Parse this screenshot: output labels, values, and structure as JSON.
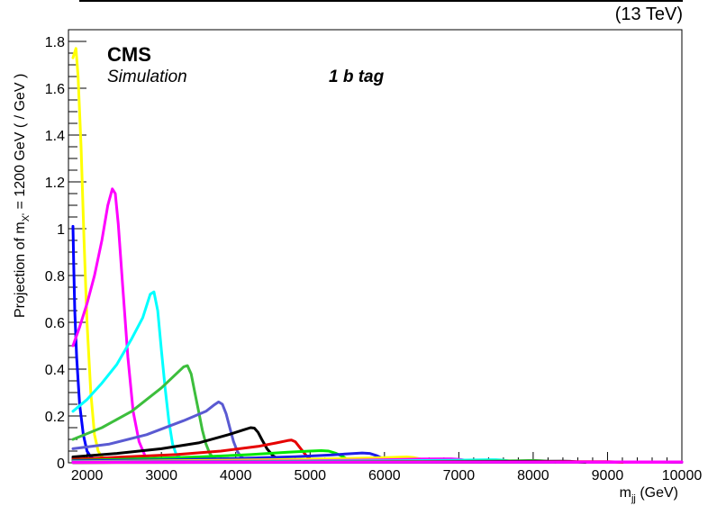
{
  "header": {
    "energy": "(13 TeV)"
  },
  "labels": {
    "cms": "CMS",
    "simulation": "Simulation",
    "tag": "1 b tag"
  },
  "chart_data": {
    "type": "line",
    "title": "",
    "ylabel": {
      "pre": "Projection of m",
      "sub": "X'",
      "post": " = 1200 GeV ( / GeV )"
    },
    "xlabel": {
      "pre": "m",
      "sub": "jj",
      "post": " (GeV)"
    },
    "xlim": [
      1750,
      10000
    ],
    "ylim": [
      0,
      1.85
    ],
    "grid": false,
    "xticks": [
      2000,
      3000,
      4000,
      5000,
      6000,
      7000,
      8000,
      9000,
      10000
    ],
    "xtick_labels": [
      "2000",
      "3000",
      "4000",
      "5000",
      "6000",
      "7000",
      "8000",
      "9000",
      "10000"
    ],
    "yticks": [
      0,
      0.2,
      0.4,
      0.6,
      0.8,
      1,
      1.2,
      1.4,
      1.6,
      1.8
    ],
    "ytick_labels": [
      "0",
      "0.2",
      "0.4",
      "0.6",
      "0.8",
      "1",
      "1.2",
      "1.4",
      "1.6",
      "1.8"
    ],
    "series": [
      {
        "color": "#0000ff",
        "x": [
          1810,
          1820,
          1835,
          1860,
          1900,
          1950,
          2000,
          2050,
          2100,
          2150,
          2300,
          2500,
          3000,
          3500,
          4000
        ],
        "y": [
          1.01,
          0.85,
          0.65,
          0.45,
          0.25,
          0.12,
          0.05,
          0.025,
          0.015,
          0.01,
          0.008,
          0.006,
          0.004,
          0.003,
          0.003
        ]
      },
      {
        "color": "#ffff00",
        "x": [
          1810,
          1850,
          1880,
          1920,
          1960,
          2000,
          2050,
          2100,
          2150,
          2200,
          2250,
          2300,
          2500,
          3000,
          4000
        ],
        "y": [
          1.73,
          1.77,
          1.65,
          1.35,
          0.95,
          0.6,
          0.3,
          0.12,
          0.05,
          0.025,
          0.015,
          0.01,
          0.008,
          0.006,
          0.005
        ]
      },
      {
        "color": "#ff00ff",
        "x": [
          1810,
          1900,
          2000,
          2100,
          2200,
          2280,
          2340,
          2380,
          2420,
          2480,
          2550,
          2620,
          2700,
          2780,
          2850,
          3000,
          3500,
          8000,
          10000
        ],
        "y": [
          0.5,
          0.58,
          0.68,
          0.8,
          0.95,
          1.1,
          1.17,
          1.15,
          1.02,
          0.75,
          0.45,
          0.22,
          0.09,
          0.03,
          0.015,
          0.01,
          0.006,
          0.002,
          0.002
        ]
      },
      {
        "color": "#00ffff",
        "x": [
          1810,
          2000,
          2200,
          2400,
          2600,
          2750,
          2850,
          2900,
          2950,
          3000,
          3050,
          3100,
          3150,
          3200,
          3300,
          3500,
          5000
        ],
        "y": [
          0.22,
          0.27,
          0.34,
          0.42,
          0.53,
          0.62,
          0.72,
          0.73,
          0.65,
          0.48,
          0.32,
          0.18,
          0.08,
          0.035,
          0.012,
          0.006,
          0.003
        ]
      },
      {
        "color": "#3cbe3c",
        "x": [
          1810,
          2200,
          2600,
          3000,
          3200,
          3300,
          3350,
          3400,
          3450,
          3500,
          3550,
          3600,
          3650,
          3700,
          3800,
          4000,
          6000
        ],
        "y": [
          0.1,
          0.15,
          0.22,
          0.32,
          0.38,
          0.41,
          0.415,
          0.38,
          0.3,
          0.22,
          0.14,
          0.08,
          0.04,
          0.02,
          0.008,
          0.005,
          0.002
        ]
      },
      {
        "color": "#5a5ad2",
        "x": [
          1810,
          2300,
          2800,
          3300,
          3600,
          3700,
          3770,
          3820,
          3870,
          3920,
          3970,
          4020,
          4070,
          4150,
          4300,
          5000
        ],
        "y": [
          0.06,
          0.08,
          0.12,
          0.18,
          0.22,
          0.245,
          0.26,
          0.25,
          0.21,
          0.15,
          0.09,
          0.05,
          0.025,
          0.012,
          0.005,
          0.002
        ]
      },
      {
        "color": "#000000",
        "x": [
          1810,
          2400,
          3000,
          3500,
          3900,
          4100,
          4200,
          4250,
          4300,
          4350,
          4420,
          4500,
          4600,
          4700,
          5000
        ],
        "y": [
          0.025,
          0.04,
          0.06,
          0.085,
          0.12,
          0.14,
          0.15,
          0.148,
          0.13,
          0.1,
          0.06,
          0.03,
          0.012,
          0.006,
          0.003
        ]
      },
      {
        "color": "#e60000",
        "x": [
          1810,
          2500,
          3200,
          3800,
          4300,
          4550,
          4700,
          4750,
          4800,
          4850,
          4900,
          4950,
          5000,
          5100,
          5300
        ],
        "y": [
          0.015,
          0.025,
          0.035,
          0.05,
          0.07,
          0.085,
          0.095,
          0.097,
          0.09,
          0.07,
          0.05,
          0.03,
          0.015,
          0.006,
          0.003
        ]
      },
      {
        "color": "#00e600",
        "x": [
          1810,
          2500,
          3500,
          4200,
          4700,
          5000,
          5150,
          5250,
          5350,
          5450,
          5500,
          5600,
          5700
        ],
        "y": [
          0.01,
          0.015,
          0.025,
          0.035,
          0.045,
          0.05,
          0.052,
          0.05,
          0.04,
          0.025,
          0.015,
          0.006,
          0.003
        ]
      },
      {
        "color": "#1e1ee6",
        "x": [
          1810,
          3000,
          4000,
          4800,
          5300,
          5600,
          5700,
          5800,
          5900,
          6000,
          6100,
          6300
        ],
        "y": [
          0.008,
          0.012,
          0.018,
          0.026,
          0.034,
          0.04,
          0.042,
          0.04,
          0.03,
          0.015,
          0.006,
          0.002
        ]
      },
      {
        "color": "#ffff00",
        "x": [
          1810,
          3000,
          4500,
          5500,
          6000,
          6200,
          6300,
          6400,
          6500,
          6600,
          6700
        ],
        "y": [
          0.005,
          0.008,
          0.013,
          0.018,
          0.022,
          0.024,
          0.025,
          0.022,
          0.015,
          0.007,
          0.003
        ]
      },
      {
        "color": "#ff00ff",
        "x": [
          1810,
          3500,
          5000,
          6000,
          6500,
          6800,
          6900,
          7000,
          7100,
          7200,
          7300
        ],
        "y": [
          0.004,
          0.006,
          0.009,
          0.013,
          0.016,
          0.017,
          0.017,
          0.015,
          0.01,
          0.005,
          0.002
        ]
      },
      {
        "color": "#00ffff",
        "x": [
          1810,
          4000,
          6000,
          7000,
          7400,
          7500,
          7600,
          7700,
          7800
        ],
        "y": [
          0.003,
          0.005,
          0.008,
          0.011,
          0.013,
          0.013,
          0.011,
          0.007,
          0.003
        ]
      },
      {
        "color": "#3cbe3c",
        "x": [
          1810,
          5000,
          7000,
          7800,
          8000,
          8100,
          8200,
          8300
        ],
        "y": [
          0.002,
          0.004,
          0.007,
          0.009,
          0.01,
          0.009,
          0.006,
          0.003
        ]
      },
      {
        "color": "#000000",
        "x": [
          1810,
          6000,
          8000,
          8400,
          8500,
          8600,
          8700
        ],
        "y": [
          0.0015,
          0.003,
          0.006,
          0.007,
          0.006,
          0.004,
          0.002
        ]
      },
      {
        "color": "#e60000",
        "x": [
          1810,
          7000,
          8800,
          9000,
          9100,
          9200
        ],
        "y": [
          0.001,
          0.003,
          0.005,
          0.005,
          0.004,
          0.002
        ]
      },
      {
        "color": "#6a0dad",
        "x": [
          1810,
          6000,
          8000,
          9500,
          9700,
          9900,
          10000
        ],
        "y": [
          0.001,
          0.002,
          0.003,
          0.004,
          0.004,
          0.003,
          0.003
        ]
      },
      {
        "color": "#ff00ff",
        "x": [
          1810,
          6000,
          9000,
          10000
        ],
        "y": [
          0.002,
          0.003,
          0.004,
          0.004
        ]
      }
    ]
  }
}
